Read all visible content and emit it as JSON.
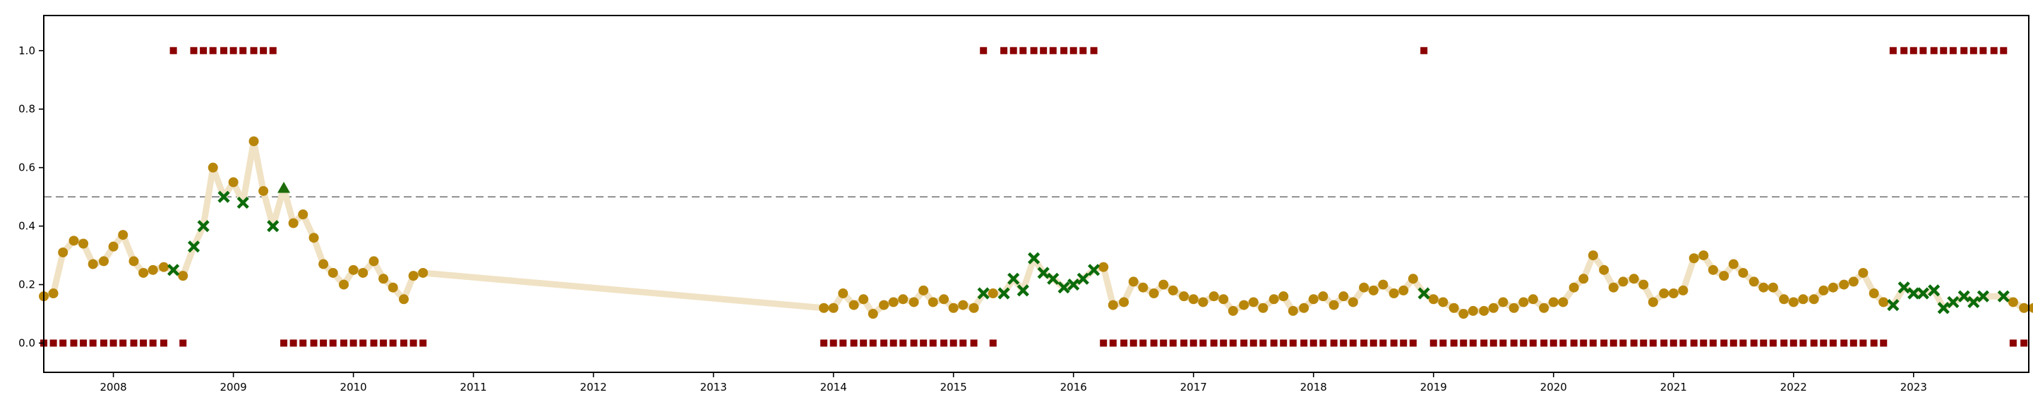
{
  "chart_data": {
    "type": "line",
    "title": "",
    "xlabel": "",
    "ylabel": "",
    "xlim": [
      2007.42,
      2023.96
    ],
    "ylim": [
      -0.1,
      1.12
    ],
    "x_ticks": [
      2008,
      2009,
      2010,
      2011,
      2012,
      2013,
      2014,
      2015,
      2016,
      2017,
      2018,
      2019,
      2020,
      2021,
      2022,
      2023
    ],
    "x_tick_labels": [
      "2008",
      "2009",
      "2010",
      "2011",
      "2012",
      "2013",
      "2014",
      "2015",
      "2016",
      "2017",
      "2018",
      "2019",
      "2020",
      "2021",
      "2022",
      "2023"
    ],
    "y_ticks": [
      0.0,
      0.2,
      0.4,
      0.6,
      0.8,
      1.0
    ],
    "y_tick_labels": [
      "0.0",
      "0.2",
      "0.4",
      "0.6",
      "0.8",
      "1.0"
    ],
    "threshold": 0.5,
    "grid": false,
    "legend": "none",
    "colors": {
      "line": "#f0e2c4",
      "circle": "#b8860b",
      "cross": "#0b6b0b",
      "triangle": "#1e6b0b",
      "flag": "#8b0000",
      "threshold": "#999999"
    },
    "series": [
      {
        "marker": "circle",
        "x": [
          2007.42,
          2007.5,
          2007.58,
          2007.67,
          2007.75,
          2007.83,
          2007.92,
          2008.0,
          2008.08,
          2008.17,
          2008.25,
          2008.33,
          2008.42,
          2008.58,
          2008.83,
          2009.0,
          2009.17,
          2009.25,
          2009.5,
          2009.58,
          2009.67,
          2009.75,
          2009.83,
          2009.92,
          2010.0,
          2010.08,
          2010.17,
          2010.25,
          2010.33,
          2010.42,
          2010.5,
          2010.58,
          2013.92,
          2014.0,
          2014.08,
          2014.17,
          2014.25,
          2014.33,
          2014.42,
          2014.5,
          2014.58,
          2014.67,
          2014.75,
          2014.83,
          2014.92,
          2015.0,
          2015.08,
          2015.17,
          2015.33,
          2016.25,
          2016.33,
          2016.42,
          2016.5,
          2016.58,
          2016.67,
          2016.75,
          2016.83,
          2016.92,
          2017.0,
          2017.08,
          2017.17,
          2017.25,
          2017.33,
          2017.42,
          2017.5,
          2017.58,
          2017.67,
          2017.75,
          2017.83,
          2017.92,
          2018.0,
          2018.08,
          2018.17,
          2018.25,
          2018.33,
          2018.42,
          2018.5,
          2018.58,
          2018.67,
          2018.75,
          2018.83,
          2019.0,
          2019.08,
          2019.17,
          2019.25,
          2019.33,
          2019.42,
          2019.5,
          2019.58,
          2019.67,
          2019.75,
          2019.83,
          2019.92,
          2020.0,
          2020.08,
          2020.17,
          2020.25,
          2020.33,
          2020.42,
          2020.5,
          2020.58,
          2020.67,
          2020.75,
          2020.83,
          2020.92,
          2021.0,
          2021.08,
          2021.17,
          2021.25,
          2021.33,
          2021.42,
          2021.5,
          2021.58,
          2021.67,
          2021.75,
          2021.83,
          2021.92,
          2022.0,
          2022.08,
          2022.17,
          2022.25,
          2022.33,
          2022.42,
          2022.5,
          2022.58,
          2022.67,
          2022.75,
          2023.83,
          2023.92,
          2024.0
        ],
        "y": [
          0.16,
          0.17,
          0.31,
          0.35,
          0.34,
          0.27,
          0.28,
          0.33,
          0.37,
          0.28,
          0.24,
          0.25,
          0.26,
          0.23,
          0.6,
          0.55,
          0.69,
          0.52,
          0.41,
          0.44,
          0.36,
          0.27,
          0.24,
          0.2,
          0.25,
          0.24,
          0.28,
          0.22,
          0.19,
          0.15,
          0.23,
          0.24,
          0.12,
          0.12,
          0.17,
          0.13,
          0.15,
          0.1,
          0.13,
          0.14,
          0.15,
          0.14,
          0.18,
          0.14,
          0.15,
          0.12,
          0.13,
          0.12,
          0.17,
          0.26,
          0.13,
          0.14,
          0.21,
          0.19,
          0.17,
          0.2,
          0.18,
          0.16,
          0.15,
          0.14,
          0.16,
          0.15,
          0.11,
          0.13,
          0.14,
          0.12,
          0.15,
          0.16,
          0.11,
          0.12,
          0.15,
          0.16,
          0.13,
          0.16,
          0.14,
          0.19,
          0.18,
          0.2,
          0.17,
          0.18,
          0.22,
          0.15,
          0.14,
          0.12,
          0.1,
          0.11,
          0.11,
          0.12,
          0.14,
          0.12,
          0.14,
          0.15,
          0.12,
          0.14,
          0.14,
          0.19,
          0.22,
          0.3,
          0.25,
          0.19,
          0.21,
          0.22,
          0.2,
          0.14,
          0.17,
          0.17,
          0.18,
          0.29,
          0.3,
          0.25,
          0.23,
          0.27,
          0.24,
          0.21,
          0.19,
          0.19,
          0.15,
          0.14,
          0.15,
          0.15,
          0.18,
          0.19,
          0.2,
          0.21,
          0.24,
          0.17,
          0.14,
          0.14,
          0.12,
          0.12
        ]
      },
      {
        "marker": "cross",
        "x": [
          2008.5,
          2008.67,
          2008.75,
          2008.92,
          2009.08,
          2009.33,
          2015.25,
          2015.42,
          2015.5,
          2015.58,
          2015.67,
          2015.75,
          2015.83,
          2015.92,
          2016.0,
          2016.08,
          2016.17,
          2018.92,
          2022.83,
          2022.92,
          2023.0,
          2023.08,
          2023.17,
          2023.25,
          2023.33,
          2023.42,
          2023.5,
          2023.58,
          2023.75
        ],
        "y": [
          0.25,
          0.33,
          0.4,
          0.5,
          0.48,
          0.4,
          0.17,
          0.17,
          0.22,
          0.18,
          0.29,
          0.24,
          0.22,
          0.19,
          0.2,
          0.22,
          0.25,
          0.17,
          0.13,
          0.19,
          0.17,
          0.17,
          0.18,
          0.12,
          0.14,
          0.16,
          0.14,
          0.16,
          0.16
        ]
      },
      {
        "marker": "triangle",
        "x": [
          2009.42
        ],
        "y": [
          0.53
        ]
      }
    ],
    "indicator": {
      "marker": "square",
      "x": [
        2007.42,
        2007.5,
        2007.58,
        2007.67,
        2007.75,
        2007.83,
        2007.92,
        2008.0,
        2008.08,
        2008.17,
        2008.25,
        2008.33,
        2008.42,
        2008.5,
        2008.58,
        2008.67,
        2008.75,
        2008.83,
        2008.92,
        2009.0,
        2009.08,
        2009.17,
        2009.25,
        2009.33,
        2009.42,
        2009.5,
        2009.58,
        2009.67,
        2009.75,
        2009.83,
        2009.92,
        2010.0,
        2010.08,
        2010.17,
        2010.25,
        2010.33,
        2010.42,
        2010.5,
        2010.58,
        2013.92,
        2014.0,
        2014.08,
        2014.17,
        2014.25,
        2014.33,
        2014.42,
        2014.5,
        2014.58,
        2014.67,
        2014.75,
        2014.83,
        2014.92,
        2015.0,
        2015.08,
        2015.17,
        2015.25,
        2015.33,
        2015.42,
        2015.5,
        2015.58,
        2015.67,
        2015.75,
        2015.83,
        2015.92,
        2016.0,
        2016.08,
        2016.17,
        2016.25,
        2016.33,
        2016.42,
        2016.5,
        2016.58,
        2016.67,
        2016.75,
        2016.83,
        2016.92,
        2017.0,
        2017.08,
        2017.17,
        2017.25,
        2017.33,
        2017.42,
        2017.5,
        2017.58,
        2017.67,
        2017.75,
        2017.83,
        2017.92,
        2018.0,
        2018.08,
        2018.17,
        2018.25,
        2018.33,
        2018.42,
        2018.5,
        2018.58,
        2018.67,
        2018.75,
        2018.83,
        2018.92,
        2019.0,
        2019.08,
        2019.17,
        2019.25,
        2019.33,
        2019.42,
        2019.5,
        2019.58,
        2019.67,
        2019.75,
        2019.83,
        2019.92,
        2020.0,
        2020.08,
        2020.17,
        2020.25,
        2020.33,
        2020.42,
        2020.5,
        2020.58,
        2020.67,
        2020.75,
        2020.83,
        2020.92,
        2021.0,
        2021.08,
        2021.17,
        2021.25,
        2021.33,
        2021.42,
        2021.5,
        2021.58,
        2021.67,
        2021.75,
        2021.83,
        2021.92,
        2022.0,
        2022.08,
        2022.17,
        2022.25,
        2022.33,
        2022.42,
        2022.5,
        2022.58,
        2022.67,
        2022.75,
        2022.83,
        2022.92,
        2023.0,
        2023.08,
        2023.17,
        2023.25,
        2023.33,
        2023.42,
        2023.5,
        2023.58,
        2023.67,
        2023.75,
        2023.83,
        2023.92
      ],
      "y": [
        0,
        0,
        0,
        0,
        0,
        0,
        0,
        0,
        0,
        0,
        0,
        0,
        0,
        1,
        0,
        1,
        1,
        1,
        1,
        1,
        1,
        1,
        1,
        1,
        0,
        0,
        0,
        0,
        0,
        0,
        0,
        0,
        0,
        0,
        0,
        0,
        0,
        0,
        0,
        0,
        0,
        0,
        0,
        0,
        0,
        0,
        0,
        0,
        0,
        0,
        0,
        0,
        0,
        0,
        0,
        1,
        0,
        1,
        1,
        1,
        1,
        1,
        1,
        1,
        1,
        1,
        1,
        0,
        0,
        0,
        0,
        0,
        0,
        0,
        0,
        0,
        0,
        0,
        0,
        0,
        0,
        0,
        0,
        0,
        0,
        0,
        0,
        0,
        0,
        0,
        0,
        0,
        0,
        0,
        0,
        0,
        0,
        0,
        0,
        1,
        0,
        0,
        0,
        0,
        0,
        0,
        0,
        0,
        0,
        0,
        0,
        0,
        0,
        0,
        0,
        0,
        0,
        0,
        0,
        0,
        0,
        0,
        0,
        0,
        0,
        0,
        0,
        0,
        0,
        0,
        0,
        0,
        0,
        0,
        0,
        0,
        0,
        0,
        0,
        0,
        0,
        0,
        0,
        0,
        0,
        0,
        1,
        1,
        1,
        1,
        1,
        1,
        1,
        1,
        1,
        1,
        1,
        1,
        0,
        0
      ]
    }
  }
}
